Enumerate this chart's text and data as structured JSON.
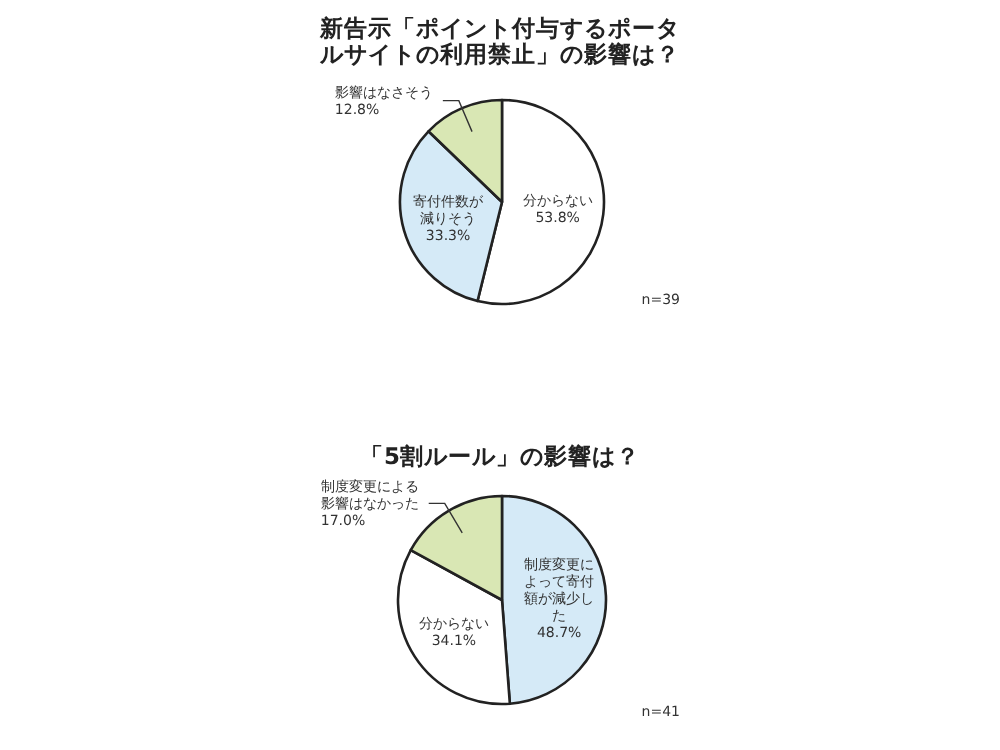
{
  "chart_data": [
    {
      "type": "pie",
      "title": "新告示「ポイント付与するポータルサイトの利用禁止」の影響は？",
      "categories": [
        "分からない",
        "寄付件数が減りそう",
        "影響はなさそう"
      ],
      "values": [
        53.8,
        33.3,
        12.8
      ],
      "value_labels": [
        "53.8%",
        "33.3%",
        "12.8%"
      ],
      "colors": [
        "#ffffff",
        "#d5eaf7",
        "#d9e7b4"
      ],
      "annotations": [
        "n=39"
      ]
    },
    {
      "type": "pie",
      "title": "「5割ルール」の影響は？",
      "categories": [
        "制度変更によって寄付額が減少した",
        "分からない",
        "制度変更による影響はなかった"
      ],
      "values": [
        48.7,
        34.1,
        17.0
      ],
      "value_labels": [
        "48.7%",
        "34.1%",
        "17.0%"
      ],
      "colors": [
        "#d5eaf7",
        "#ffffff",
        "#d9e7b4"
      ],
      "annotations": [
        "n=41"
      ]
    }
  ]
}
